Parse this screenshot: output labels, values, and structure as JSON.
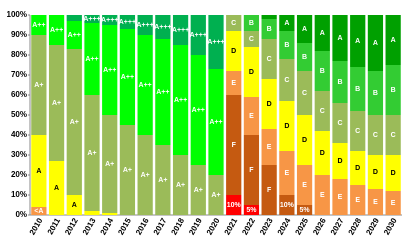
{
  "chart_data": {
    "type": "stacked-bar",
    "categories": [
      "2010",
      "2011",
      "2012",
      "2013",
      "2014",
      "2015",
      "2016",
      "2017",
      "2018",
      "2019",
      "2020",
      "2021",
      "2022",
      "2023",
      "2024",
      "2025",
      "2026",
      "2027",
      "2028",
      "2029",
      "2030"
    ],
    "ylim": [
      0,
      100
    ],
    "yticks": [
      {
        "value": 0,
        "label": "0%"
      },
      {
        "value": 10,
        "label": "10%"
      },
      {
        "value": 20,
        "label": "20%"
      },
      {
        "value": 30,
        "label": "30%"
      },
      {
        "value": 40,
        "label": "40%"
      },
      {
        "value": 50,
        "label": "50%"
      },
      {
        "value": 60,
        "label": "60%"
      },
      {
        "value": 70,
        "label": "70%"
      },
      {
        "value": 80,
        "label": "80%"
      },
      {
        "value": 90,
        "label": "90%"
      },
      {
        "value": 100,
        "label": "100%"
      }
    ],
    "series": [
      {
        "name": "<A",
        "color": "#f79646",
        "values": [
          4,
          0,
          0,
          0,
          0,
          0,
          0,
          0,
          0,
          0,
          0,
          null,
          null,
          null,
          null,
          null,
          null,
          null,
          null,
          null,
          null
        ]
      },
      {
        "name": "A",
        "color": "#ffff00",
        "values": [
          36,
          27,
          10,
          2,
          1,
          0,
          0,
          0,
          0,
          0,
          0,
          null,
          null,
          null,
          null,
          null,
          null,
          null,
          null,
          null,
          null
        ]
      },
      {
        "name": "A+",
        "color": "#9bbb59",
        "values": [
          50,
          58,
          73,
          58,
          49,
          45,
          40,
          35,
          30,
          25,
          20,
          null,
          null,
          null,
          null,
          null,
          null,
          null,
          null,
          null,
          null
        ]
      },
      {
        "name": "A++",
        "color": "#00ff00",
        "values": [
          10,
          15,
          14,
          36,
          45,
          48,
          50,
          53,
          55,
          55,
          53,
          null,
          null,
          null,
          null,
          null,
          null,
          null,
          null,
          null,
          null
        ]
      },
      {
        "name": "A+++",
        "color": "#00b050",
        "values": [
          0,
          0,
          3,
          4,
          5,
          7,
          10,
          12,
          15,
          20,
          27,
          null,
          null,
          null,
          null,
          null,
          null,
          null,
          null,
          null,
          null
        ]
      },
      {
        "name": "G",
        "color": "#ff0000",
        "values": [
          null,
          null,
          null,
          null,
          null,
          null,
          null,
          null,
          null,
          null,
          null,
          10,
          5,
          0,
          0,
          0,
          0,
          0,
          0,
          0,
          0
        ],
        "value_labels": [
          null,
          null,
          null,
          null,
          null,
          null,
          null,
          null,
          null,
          null,
          null,
          "10%",
          "5%",
          null,
          null,
          null,
          null,
          null,
          null,
          null,
          null
        ]
      },
      {
        "name": "F",
        "color": "#c55a11",
        "values": [
          null,
          null,
          null,
          null,
          null,
          null,
          null,
          null,
          null,
          null,
          null,
          50,
          35,
          25,
          10,
          5,
          0,
          0,
          0,
          0,
          0
        ],
        "value_labels": [
          null,
          null,
          null,
          null,
          null,
          null,
          null,
          null,
          null,
          null,
          null,
          null,
          null,
          null,
          "10%",
          "5%",
          null,
          null,
          null,
          null,
          null
        ]
      },
      {
        "name": "E",
        "color": "#f79646",
        "values": [
          null,
          null,
          null,
          null,
          null,
          null,
          null,
          null,
          null,
          null,
          null,
          12,
          19,
          18,
          22,
          20,
          20,
          18,
          15,
          13,
          12
        ]
      },
      {
        "name": "D",
        "color": "#ffff00",
        "values": [
          null,
          null,
          null,
          null,
          null,
          null,
          null,
          null,
          null,
          null,
          null,
          20,
          25,
          25,
          25,
          25,
          22,
          18,
          17,
          17,
          18
        ]
      },
      {
        "name": "C",
        "color": "#9bbb59",
        "values": [
          null,
          null,
          null,
          null,
          null,
          null,
          null,
          null,
          null,
          null,
          null,
          8,
          8,
          20,
          21,
          22,
          20,
          20,
          20,
          20,
          20
        ]
      },
      {
        "name": "B",
        "color": "#33cc33",
        "values": [
          null,
          null,
          null,
          null,
          null,
          null,
          null,
          null,
          null,
          null,
          null,
          0,
          8,
          10,
          14,
          14,
          20,
          21,
          22,
          22,
          25
        ]
      },
      {
        "name": "A",
        "color": "#00a000",
        "values": [
          null,
          null,
          null,
          null,
          null,
          null,
          null,
          null,
          null,
          null,
          null,
          0,
          0,
          2,
          8,
          14,
          18,
          23,
          26,
          28,
          25
        ]
      }
    ]
  }
}
